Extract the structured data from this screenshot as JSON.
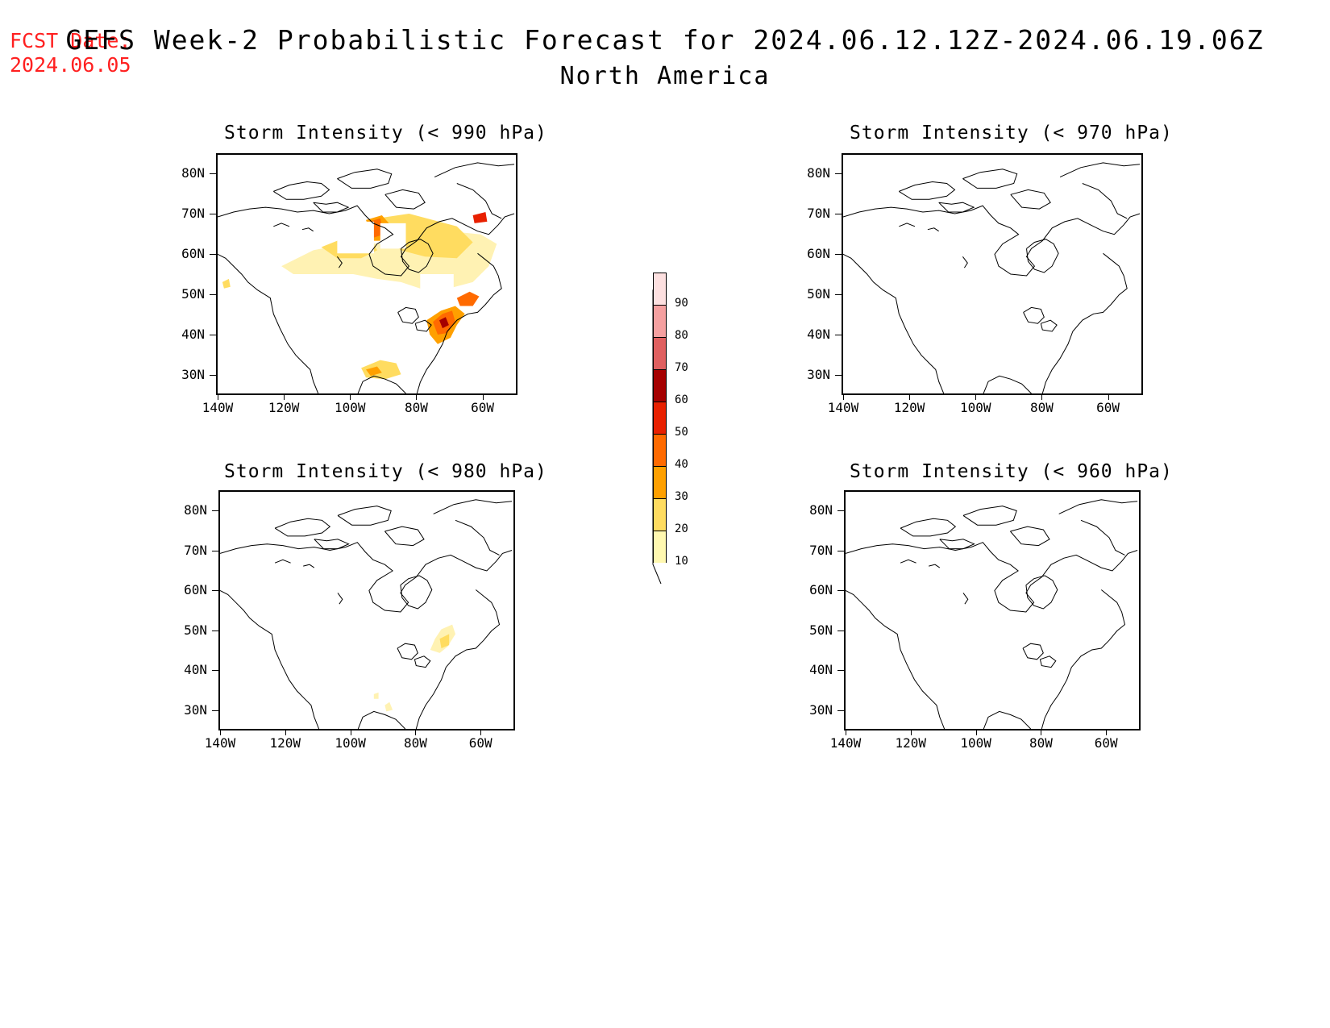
{
  "fcst_date": {
    "label": "FCST Date:",
    "value": "2024.06.05"
  },
  "title": "GEFS Week-2 Probabilistic Forecast for 2024.06.12.12Z-2024.06.19.06Z",
  "subtitle": "North America",
  "lat_labels": [
    "80N",
    "70N",
    "60N",
    "50N",
    "40N",
    "30N"
  ],
  "lon_labels": [
    "140W",
    "120W",
    "100W",
    "80W",
    "60W"
  ],
  "panels": [
    {
      "title": "Storm Intensity (< 990 hPa)",
      "fill": "high"
    },
    {
      "title": "Storm Intensity (< 970 hPa)",
      "fill": "none"
    },
    {
      "title": "Storm Intensity (< 980 hPa)",
      "fill": "low"
    },
    {
      "title": "Storm Intensity (< 960 hPa)",
      "fill": "none"
    }
  ],
  "colorbar": {
    "labels": [
      "90",
      "80",
      "70",
      "60",
      "50",
      "40",
      "30",
      "20",
      "10"
    ],
    "colors": [
      "#fde0e0",
      "#f5a0a0",
      "#e06060",
      "#a50000",
      "#e82000",
      "#ff6a00",
      "#ffa000",
      "#ffdc60",
      "#fff8b0"
    ]
  }
}
